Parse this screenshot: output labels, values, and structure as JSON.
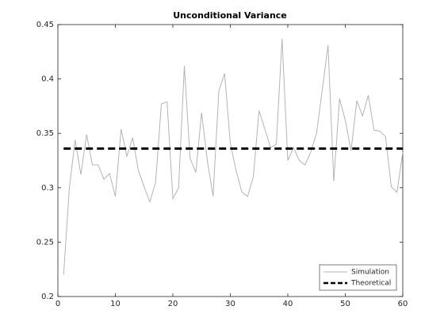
{
  "chart_data": {
    "type": "line",
    "title": "Unconditional Variance",
    "series": [
      {
        "name": "Simulation",
        "color": "#b4b4b4",
        "linestyle": "solid",
        "width": 1,
        "x": [
          1,
          2,
          3,
          4,
          5,
          6,
          7,
          8,
          9,
          10,
          11,
          12,
          13,
          14,
          15,
          16,
          17,
          18,
          19,
          20,
          21,
          22,
          23,
          24,
          25,
          26,
          27,
          28,
          29,
          30,
          31,
          32,
          33,
          34,
          35,
          36,
          37,
          38,
          39,
          40,
          41,
          42,
          43,
          44,
          45,
          46,
          47,
          48,
          49,
          50,
          51,
          52,
          53,
          54,
          55,
          56,
          57,
          58,
          59,
          60
        ],
        "values": [
          0.22,
          0.3,
          0.344,
          0.312,
          0.349,
          0.321,
          0.321,
          0.308,
          0.313,
          0.292,
          0.354,
          0.329,
          0.346,
          0.316,
          0.301,
          0.287,
          0.305,
          0.377,
          0.379,
          0.29,
          0.3,
          0.412,
          0.327,
          0.314,
          0.369,
          0.325,
          0.292,
          0.389,
          0.405,
          0.341,
          0.316,
          0.296,
          0.292,
          0.31,
          0.371,
          0.354,
          0.337,
          0.34,
          0.437,
          0.325,
          0.337,
          0.325,
          0.321,
          0.333,
          0.35,
          0.39,
          0.431,
          0.306,
          0.382,
          0.362,
          0.334,
          0.38,
          0.366,
          0.385,
          0.353,
          0.352,
          0.347,
          0.301,
          0.296,
          0.333
        ]
      },
      {
        "name": "Theoretical",
        "color": "#000000",
        "linestyle": "dashed",
        "width": 3,
        "x": [
          1,
          60
        ],
        "values": [
          0.336,
          0.336
        ]
      }
    ],
    "xlim": [
      0,
      60
    ],
    "xticks": [
      0,
      10,
      20,
      30,
      40,
      50,
      60
    ],
    "ylim": [
      0.2,
      0.45
    ],
    "yticks": [
      0.2,
      0.25,
      0.3,
      0.35,
      0.4,
      0.45
    ],
    "grid": false,
    "legend": "southeast"
  }
}
